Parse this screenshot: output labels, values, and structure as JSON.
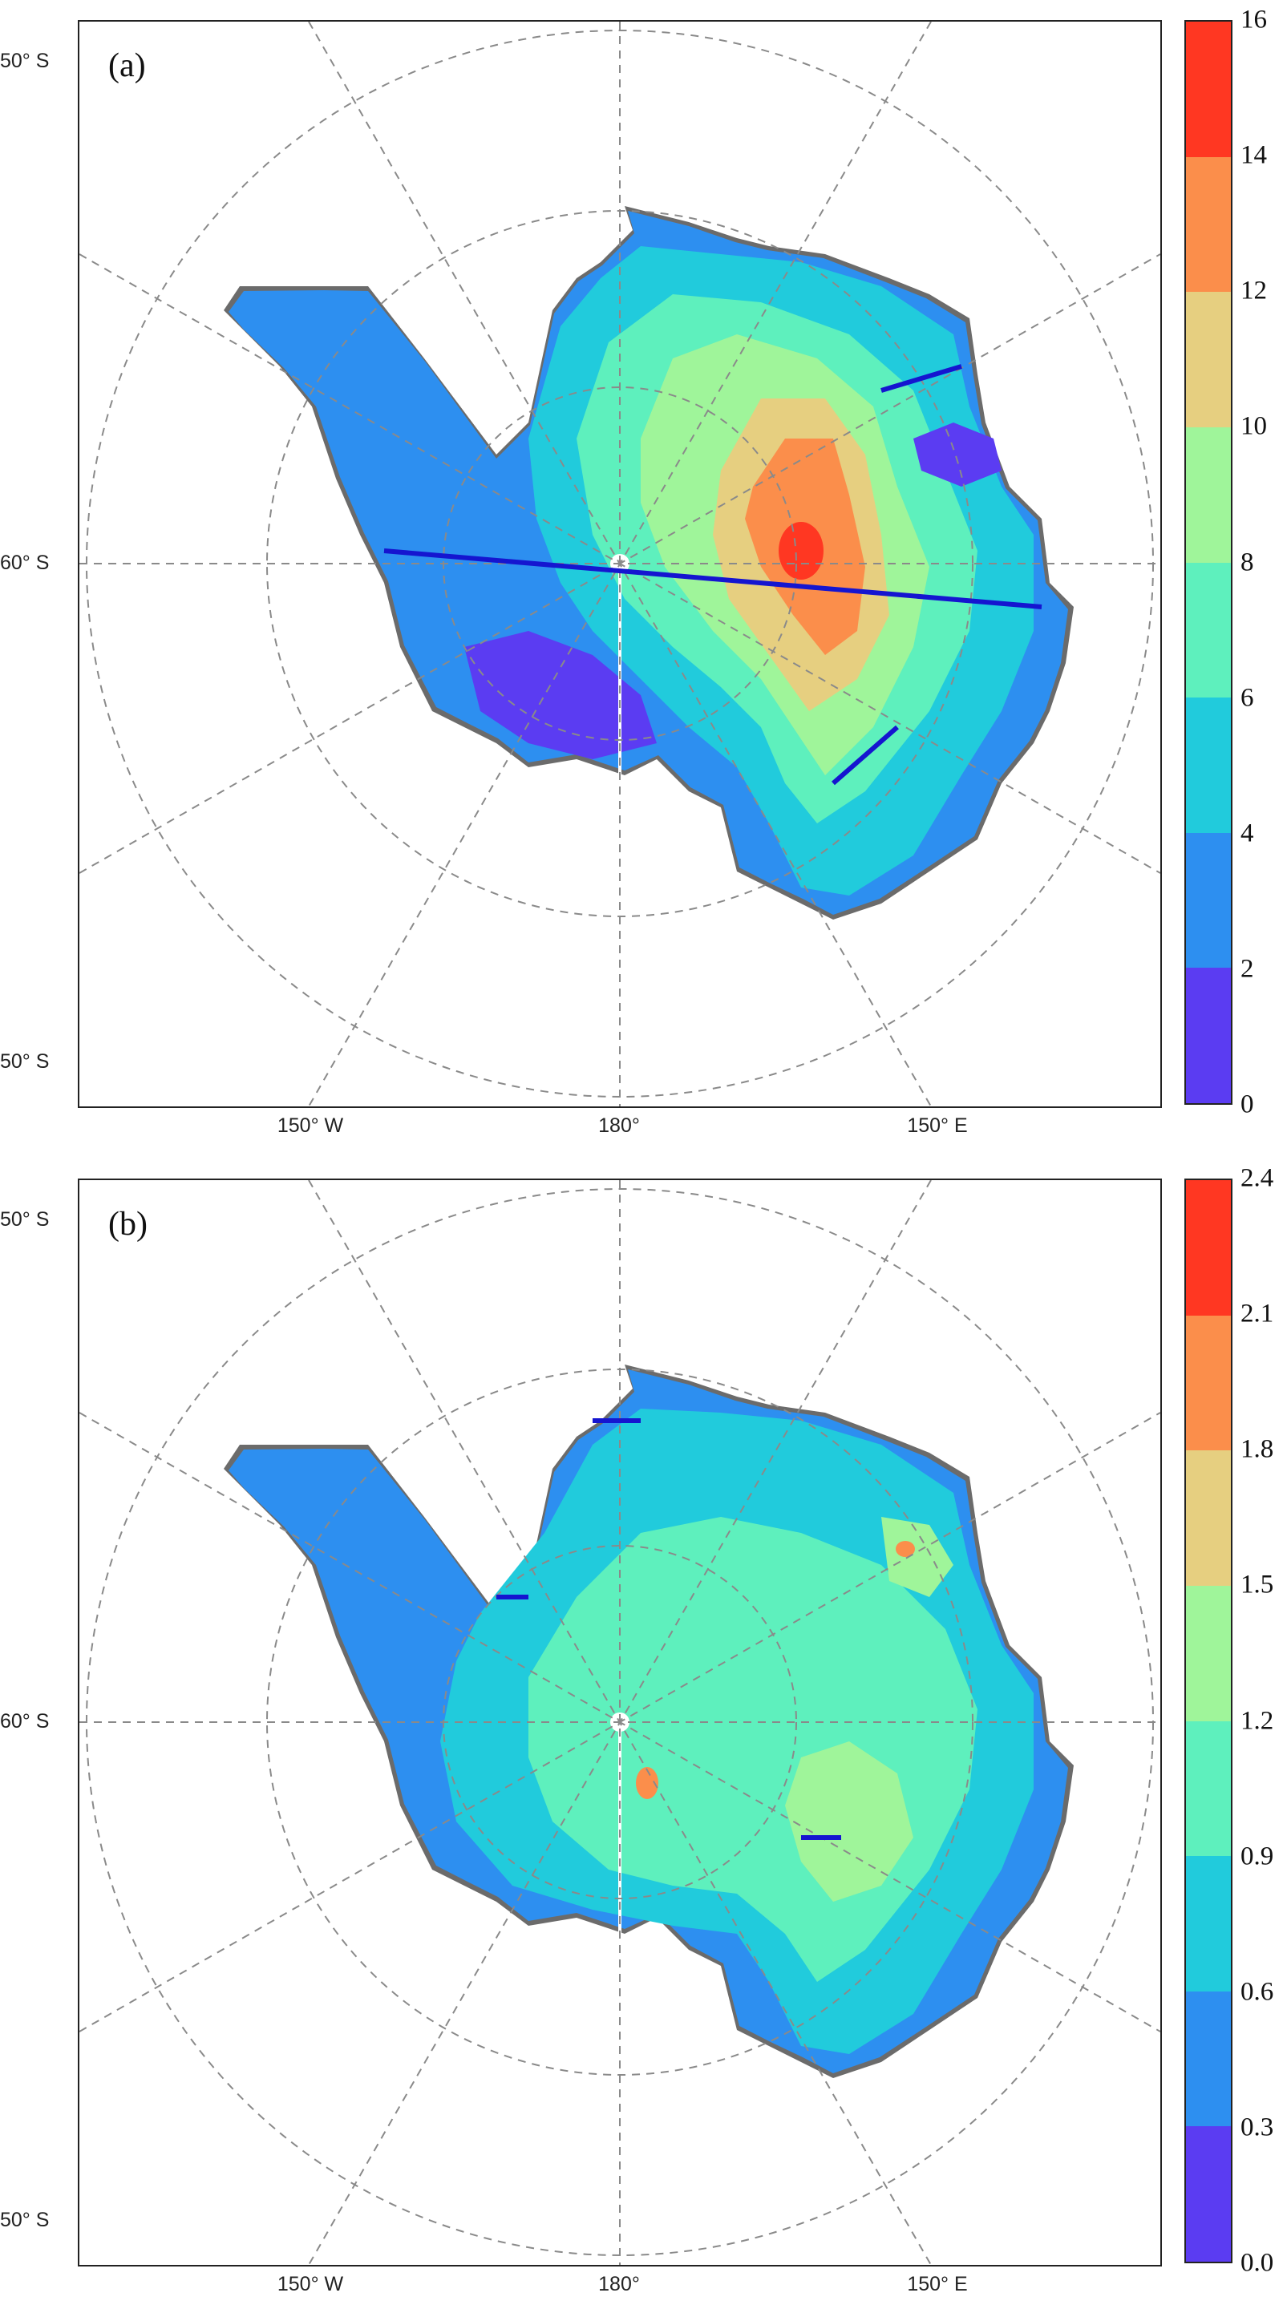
{
  "panels": [
    {
      "label": "(a)",
      "colorbar": {
        "ticks": [
          "16",
          "14",
          "12",
          "10",
          "8",
          "6",
          "4",
          "2",
          "0"
        ],
        "colors": [
          "#5b3cf2",
          "#2d8ff0",
          "#21cbdc",
          "#5ef0bd",
          "#9ff59a",
          "#e6cf80",
          "#fb8e4b",
          "#ff3722"
        ]
      },
      "lat_labels": [
        "50° S",
        "60° S",
        "50° S"
      ],
      "lon_labels": [
        "150° W",
        "180°",
        "150° E"
      ]
    },
    {
      "label": "(b)",
      "colorbar": {
        "ticks": [
          "2.4",
          "2.1",
          "1.8",
          "1.5",
          "1.2",
          "0.9",
          "0.6",
          "0.3",
          "0.0"
        ],
        "colors": [
          "#5b3cf2",
          "#2d8ff0",
          "#21cbdc",
          "#5ef0bd",
          "#9ff59a",
          "#e6cf80",
          "#fb8e4b",
          "#ff3722"
        ]
      },
      "lat_labels": [
        "50° S",
        "60° S",
        "50° S"
      ],
      "lon_labels": [
        "150° W",
        "180°",
        "150° E"
      ]
    }
  ]
}
